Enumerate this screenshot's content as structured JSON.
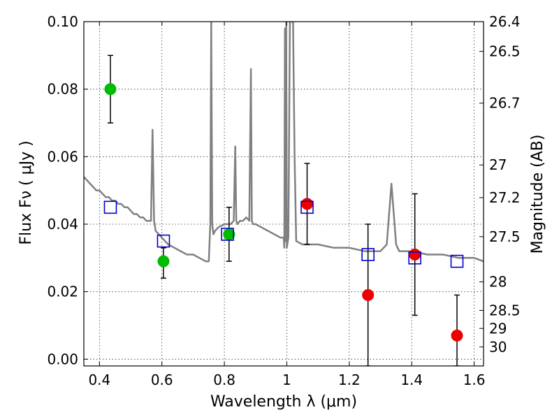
{
  "chart_data": {
    "type": "scatter",
    "xlabel": "Wavelength  λ (μm)",
    "ylabel": "Flux  Fν  ( μJy )",
    "y2label": "Magnitude (AB)",
    "xlim": [
      0.35,
      1.63
    ],
    "ylim": [
      -0.002,
      0.1
    ],
    "grid": true,
    "x_ticks": [
      0.4,
      0.6,
      0.8,
      1.0,
      1.2,
      1.4,
      1.6
    ],
    "x_tick_labels": [
      "0.4",
      "0.6",
      "0.8",
      "1",
      "1.2",
      "1.4",
      "1.6"
    ],
    "y_ticks": [
      0.0,
      0.02,
      0.04,
      0.06,
      0.08,
      0.1
    ],
    "y_tick_labels": [
      "0.00",
      "0.02",
      "0.04",
      "0.06",
      "0.08",
      "0.10"
    ],
    "y2_ticks": [
      26.4,
      26.5,
      26.7,
      27,
      27.2,
      27.5,
      28,
      28.5,
      29,
      30
    ],
    "y2_tick_labels": [
      "26.4",
      "26.5",
      "26.7",
      "27",
      "27.2",
      "27.5",
      "28",
      "28.5",
      "29",
      "30"
    ],
    "colors": {
      "model": "#808080",
      "optical": "#00bb00",
      "infrared": "#ee0000",
      "model_photometry": "#0000cc"
    },
    "model_spectrum": {
      "x": [
        0.35,
        0.36,
        0.37,
        0.38,
        0.39,
        0.4,
        0.41,
        0.42,
        0.43,
        0.44,
        0.45,
        0.46,
        0.47,
        0.48,
        0.49,
        0.5,
        0.51,
        0.52,
        0.53,
        0.54,
        0.55,
        0.56,
        0.565,
        0.57,
        0.575,
        0.58,
        0.6,
        0.62,
        0.64,
        0.66,
        0.68,
        0.7,
        0.72,
        0.74,
        0.75,
        0.755,
        0.758,
        0.761,
        0.765,
        0.77,
        0.78,
        0.8,
        0.82,
        0.83,
        0.835,
        0.838,
        0.842,
        0.85,
        0.86,
        0.87,
        0.88,
        0.885,
        0.888,
        0.892,
        0.9,
        0.92,
        0.94,
        0.96,
        0.98,
        0.99,
        0.992,
        0.994,
        0.996,
        0.998,
        1.0,
        1.005,
        1.01,
        1.013,
        1.016,
        1.02,
        1.025,
        1.03,
        1.05,
        1.08,
        1.1,
        1.15,
        1.2,
        1.25,
        1.3,
        1.32,
        1.335,
        1.35,
        1.36,
        1.4,
        1.45,
        1.5,
        1.55,
        1.6,
        1.63
      ],
      "y": [
        0.054,
        0.053,
        0.052,
        0.051,
        0.05,
        0.05,
        0.049,
        0.048,
        0.048,
        0.047,
        0.047,
        0.046,
        0.046,
        0.045,
        0.045,
        0.044,
        0.043,
        0.043,
        0.042,
        0.042,
        0.041,
        0.041,
        0.041,
        0.068,
        0.041,
        0.038,
        0.036,
        0.034,
        0.033,
        0.032,
        0.031,
        0.031,
        0.03,
        0.029,
        0.029,
        0.04,
        0.1,
        0.04,
        0.037,
        0.038,
        0.039,
        0.04,
        0.04,
        0.041,
        0.063,
        0.041,
        0.04,
        0.041,
        0.041,
        0.042,
        0.041,
        0.086,
        0.041,
        0.04,
        0.04,
        0.039,
        0.038,
        0.037,
        0.036,
        0.036,
        0.033,
        0.098,
        0.035,
        0.1,
        0.033,
        0.036,
        0.1,
        0.1,
        0.1,
        0.1,
        0.06,
        0.035,
        0.034,
        0.034,
        0.034,
        0.033,
        0.033,
        0.032,
        0.032,
        0.034,
        0.052,
        0.034,
        0.032,
        0.032,
        0.031,
        0.031,
        0.03,
        0.03,
        0.029
      ]
    },
    "series": [
      {
        "marker": "circle",
        "color_key": "optical",
        "x": [
          0.435,
          0.605,
          0.815
        ],
        "y": [
          0.08,
          0.029,
          0.037
        ],
        "yerr_low": [
          0.07,
          0.024,
          0.029
        ],
        "yerr_high": [
          0.09,
          0.033,
          0.045
        ]
      },
      {
        "marker": "circle",
        "color_key": "infrared",
        "x": [
          1.065,
          1.26,
          1.41,
          1.545
        ],
        "y": [
          0.046,
          0.019,
          0.031,
          0.007
        ],
        "yerr_low": [
          0.034,
          -0.002,
          0.013,
          -0.002
        ],
        "yerr_high": [
          0.058,
          0.04,
          0.049,
          0.019
        ]
      },
      {
        "marker": "square",
        "color_key": "model_photometry",
        "x": [
          0.435,
          0.605,
          0.81,
          1.065,
          1.26,
          1.41,
          1.545
        ],
        "y": [
          0.045,
          0.035,
          0.037,
          0.045,
          0.031,
          0.03,
          0.029
        ]
      }
    ]
  }
}
